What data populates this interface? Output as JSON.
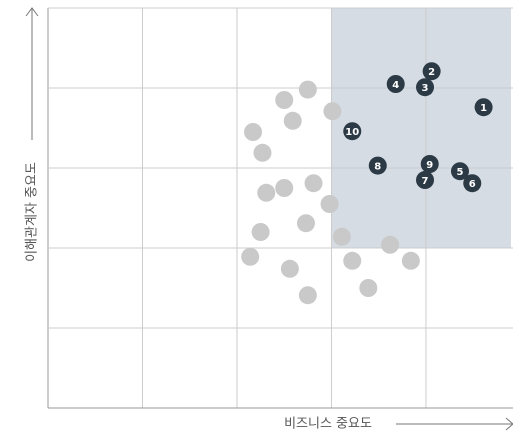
{
  "chart_data": {
    "type": "scatter",
    "x_label": "비즈니스 중요도",
    "y_label": "이해관계자 중요도",
    "xlim": [
      0,
      4.9
    ],
    "ylim": [
      0,
      5
    ],
    "xticks": [
      0,
      1,
      2,
      3,
      4
    ],
    "yticks": [
      0,
      1,
      2,
      3,
      4,
      5
    ],
    "grid": true,
    "highlight": {
      "x": [
        3,
        4.9
      ],
      "y": [
        2,
        5
      ],
      "color": "#d5dce3"
    },
    "series": [
      {
        "color": "#c9c9c9",
        "x": [
          2.75,
          2.5,
          3.01,
          2.59,
          2.17,
          2.27,
          2.81,
          2.5,
          2.31,
          2.98,
          2.73,
          2.25,
          3.11,
          3.62,
          2.14,
          3.22,
          3.84,
          2.56,
          3.39,
          2.75
        ],
        "values": [
          3.98,
          3.85,
          3.71,
          3.59,
          3.45,
          3.19,
          2.81,
          2.75,
          2.69,
          2.55,
          2.31,
          2.2,
          2.14,
          2.04,
          1.89,
          1.84,
          1.84,
          1.74,
          1.5,
          1.41
        ]
      },
      {
        "color": "#2c3a46",
        "x": [
          4.61,
          4.06,
          3.99,
          3.68,
          4.36,
          4.49,
          3.99,
          3.49,
          4.04,
          3.22
        ],
        "values": [
          3.76,
          4.21,
          4.01,
          4.05,
          2.96,
          2.81,
          2.85,
          3.03,
          3.05,
          3.46
        ],
        "labels": [
          "1",
          "2",
          "3",
          "4",
          "5",
          "6",
          "7",
          "8",
          "9",
          "10"
        ]
      }
    ]
  }
}
